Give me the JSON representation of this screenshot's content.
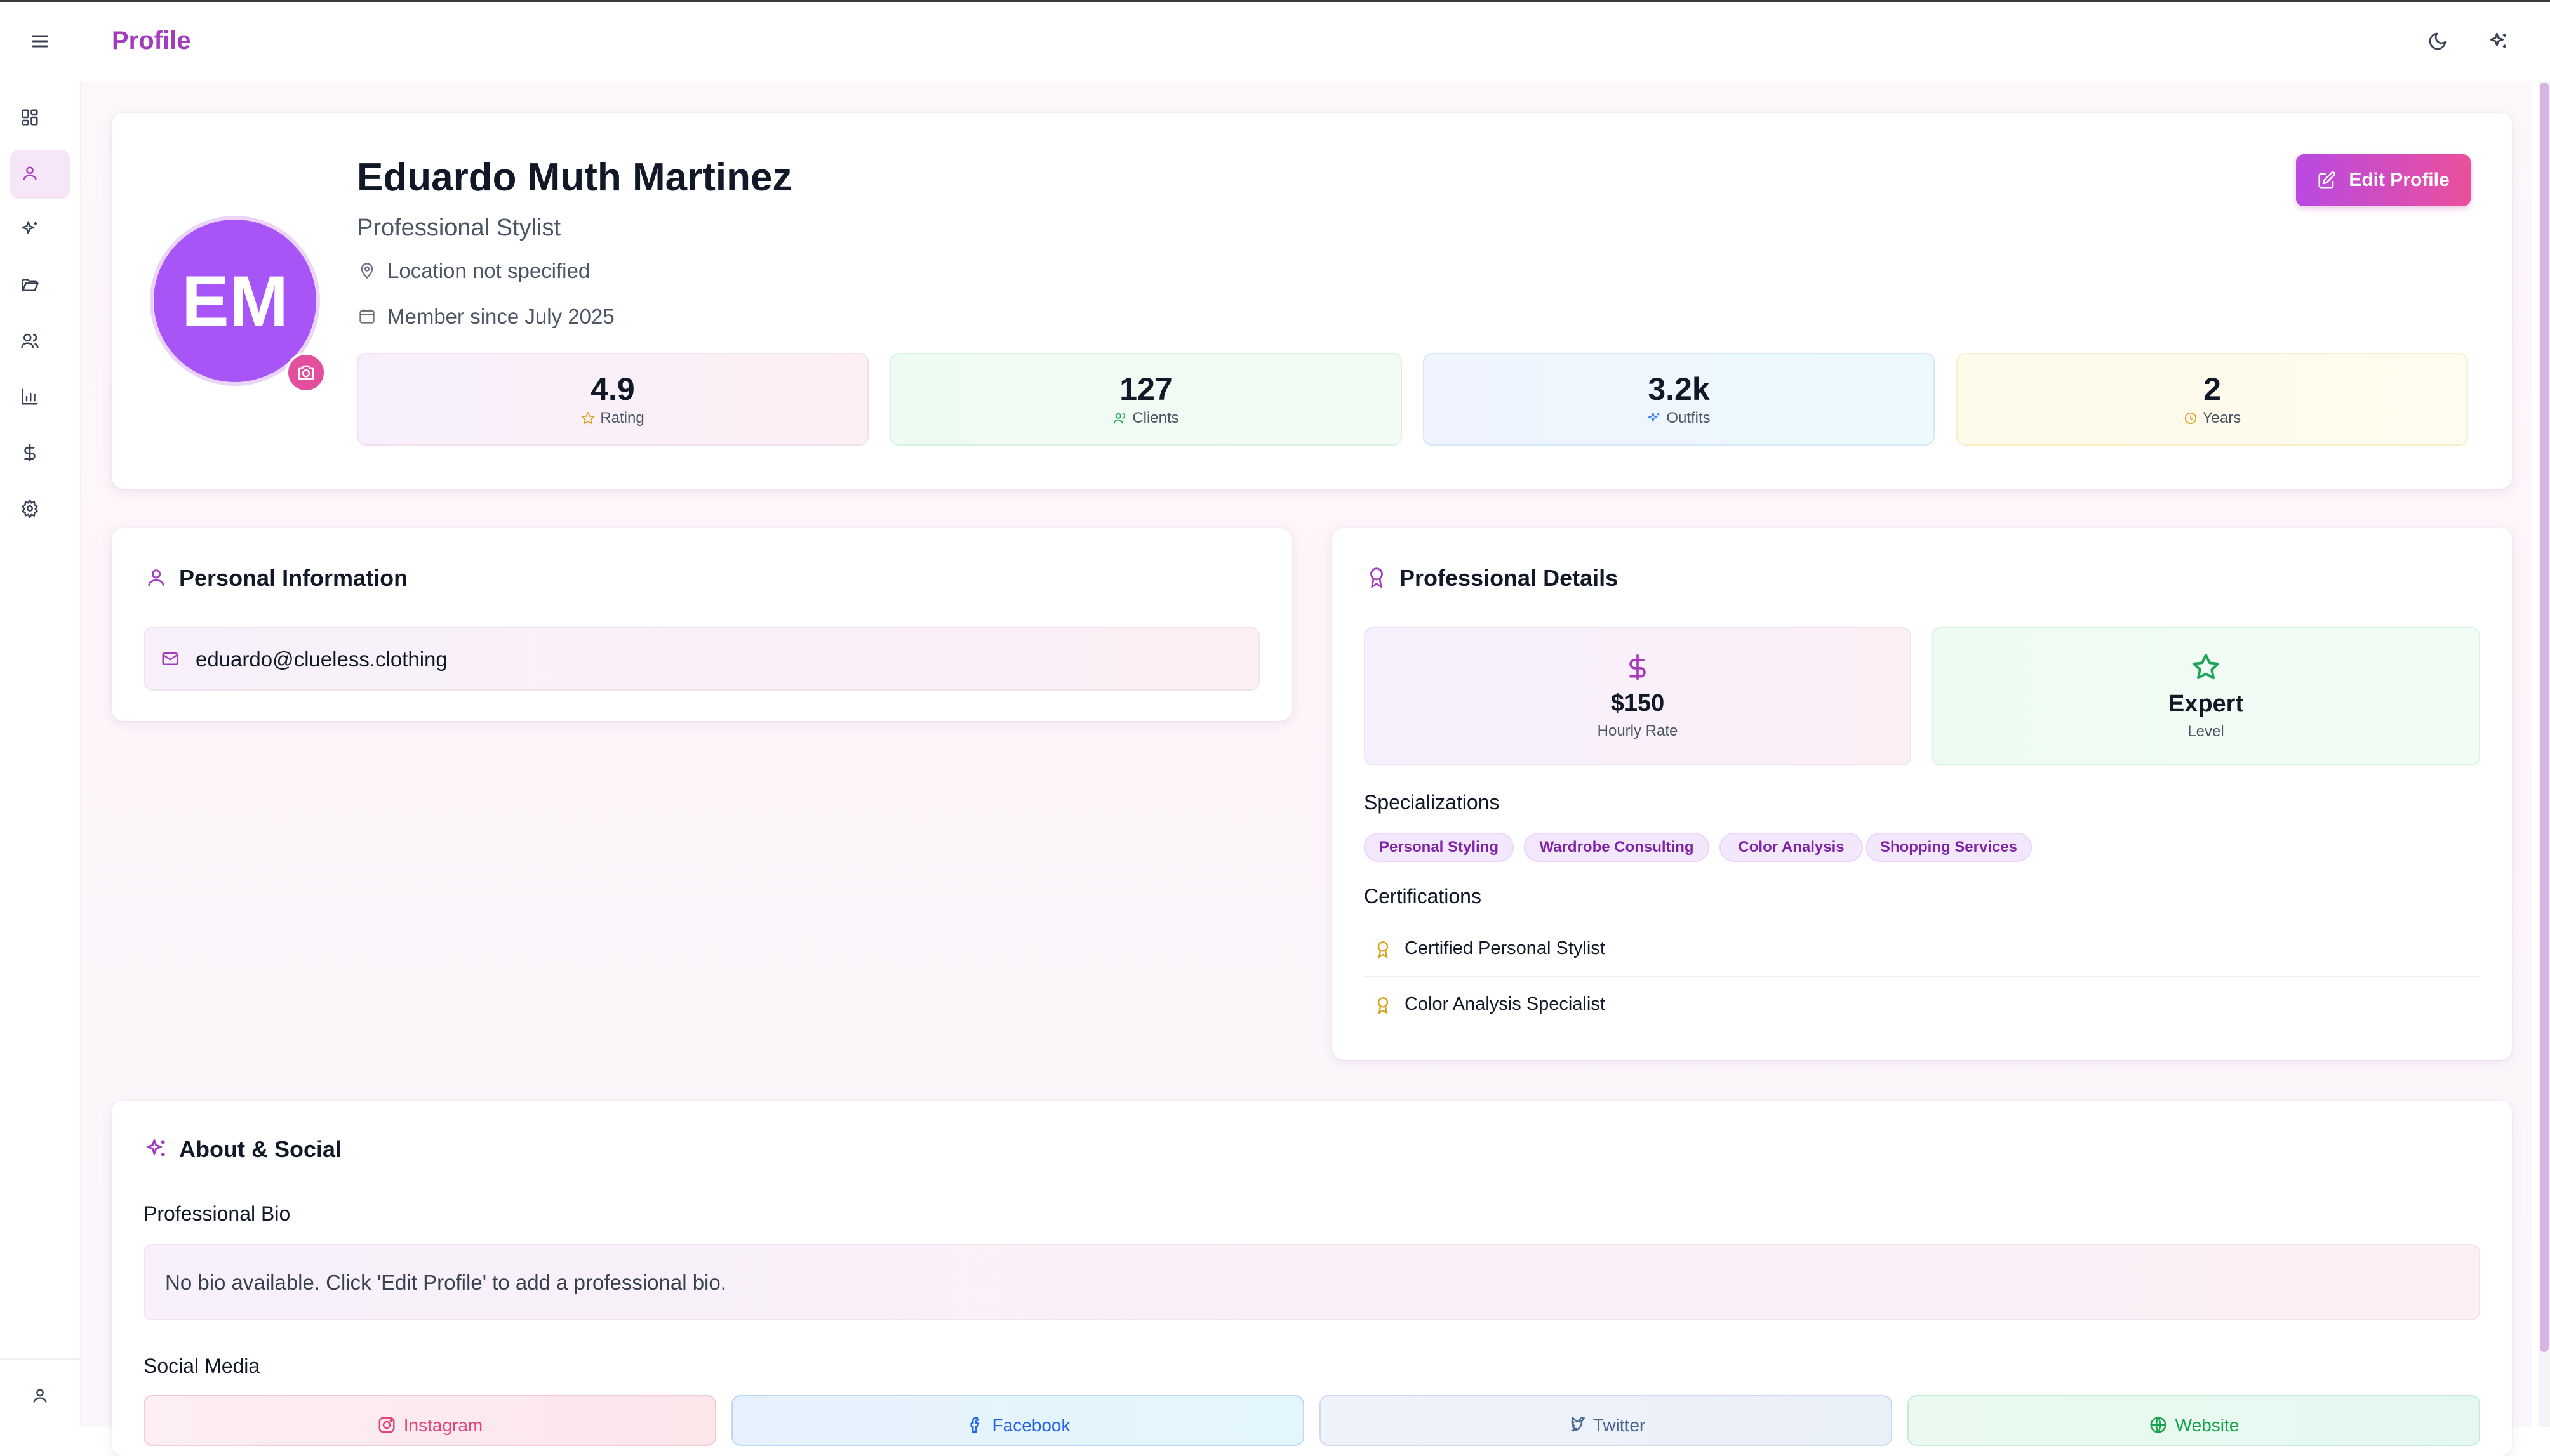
{
  "header": {
    "title": "Profile"
  },
  "profile": {
    "initials": "EM",
    "name": "Eduardo Muth Martinez",
    "role": "Professional Stylist",
    "location": "Location not specified",
    "member_since": "Member since July 2025",
    "edit_button": "Edit Profile"
  },
  "stats": [
    {
      "value": "4.9",
      "label": "Rating"
    },
    {
      "value": "127",
      "label": "Clients"
    },
    {
      "value": "3.2k",
      "label": "Outfits"
    },
    {
      "value": "2",
      "label": "Years"
    }
  ],
  "personal": {
    "title": "Personal Information",
    "email": "eduardo@clueless.clothing"
  },
  "professional": {
    "title": "Professional Details",
    "rate_value": "$150",
    "rate_label": "Hourly Rate",
    "level_value": "Expert",
    "level_label": "Level",
    "specializations_title": "Specializations",
    "specializations": [
      "Personal Styling",
      "Wardrobe Consulting",
      "Color Analysis",
      "Shopping Services"
    ],
    "certifications_title": "Certifications",
    "certifications": [
      "Certified Personal Stylist",
      "Color Analysis Specialist"
    ]
  },
  "about": {
    "title": "About & Social",
    "bio_title": "Professional Bio",
    "bio": "No bio available. Click 'Edit Profile' to add a professional bio.",
    "social_title": "Social Media",
    "social": [
      "Instagram",
      "Facebook",
      "Twitter",
      "Website"
    ]
  },
  "colors": {
    "brand": "#a33bbf",
    "avatar": "#a855f7",
    "edit_button_from": "#b94ae3",
    "edit_button_to": "#ea4f9b"
  }
}
